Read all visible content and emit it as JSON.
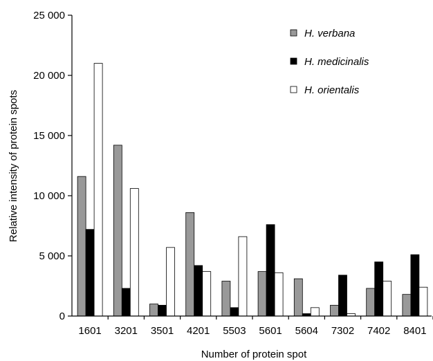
{
  "chart_data": {
    "type": "bar",
    "title": "",
    "xlabel": "Number of protein spot",
    "ylabel": "Relative intensity of protein spots",
    "ylim": [
      0,
      25000
    ],
    "yticks": [
      "0",
      "5 000",
      "10 000",
      "15 000",
      "20 000",
      "25 000"
    ],
    "ytick_values": [
      0,
      5000,
      10000,
      15000,
      20000,
      25000
    ],
    "grid": false,
    "legend_position": "top-right",
    "categories": [
      "1601",
      "3201",
      "3501",
      "4201",
      "5503",
      "5601",
      "5604",
      "7302",
      "7402",
      "8401"
    ],
    "series": [
      {
        "name": "H. verbana",
        "color": "#999999",
        "values": [
          11600,
          14200,
          1000,
          8600,
          2900,
          3700,
          3100,
          900,
          2300,
          1800
        ]
      },
      {
        "name": "H. medicinalis",
        "color": "#000000",
        "values": [
          7200,
          2300,
          900,
          4200,
          700,
          7600,
          200,
          3400,
          4500,
          5100
        ]
      },
      {
        "name": "H. orientalis",
        "color": "#ffffff",
        "values": [
          21000,
          10600,
          5700,
          3700,
          6600,
          3600,
          700,
          200,
          2900,
          2400
        ]
      }
    ]
  }
}
